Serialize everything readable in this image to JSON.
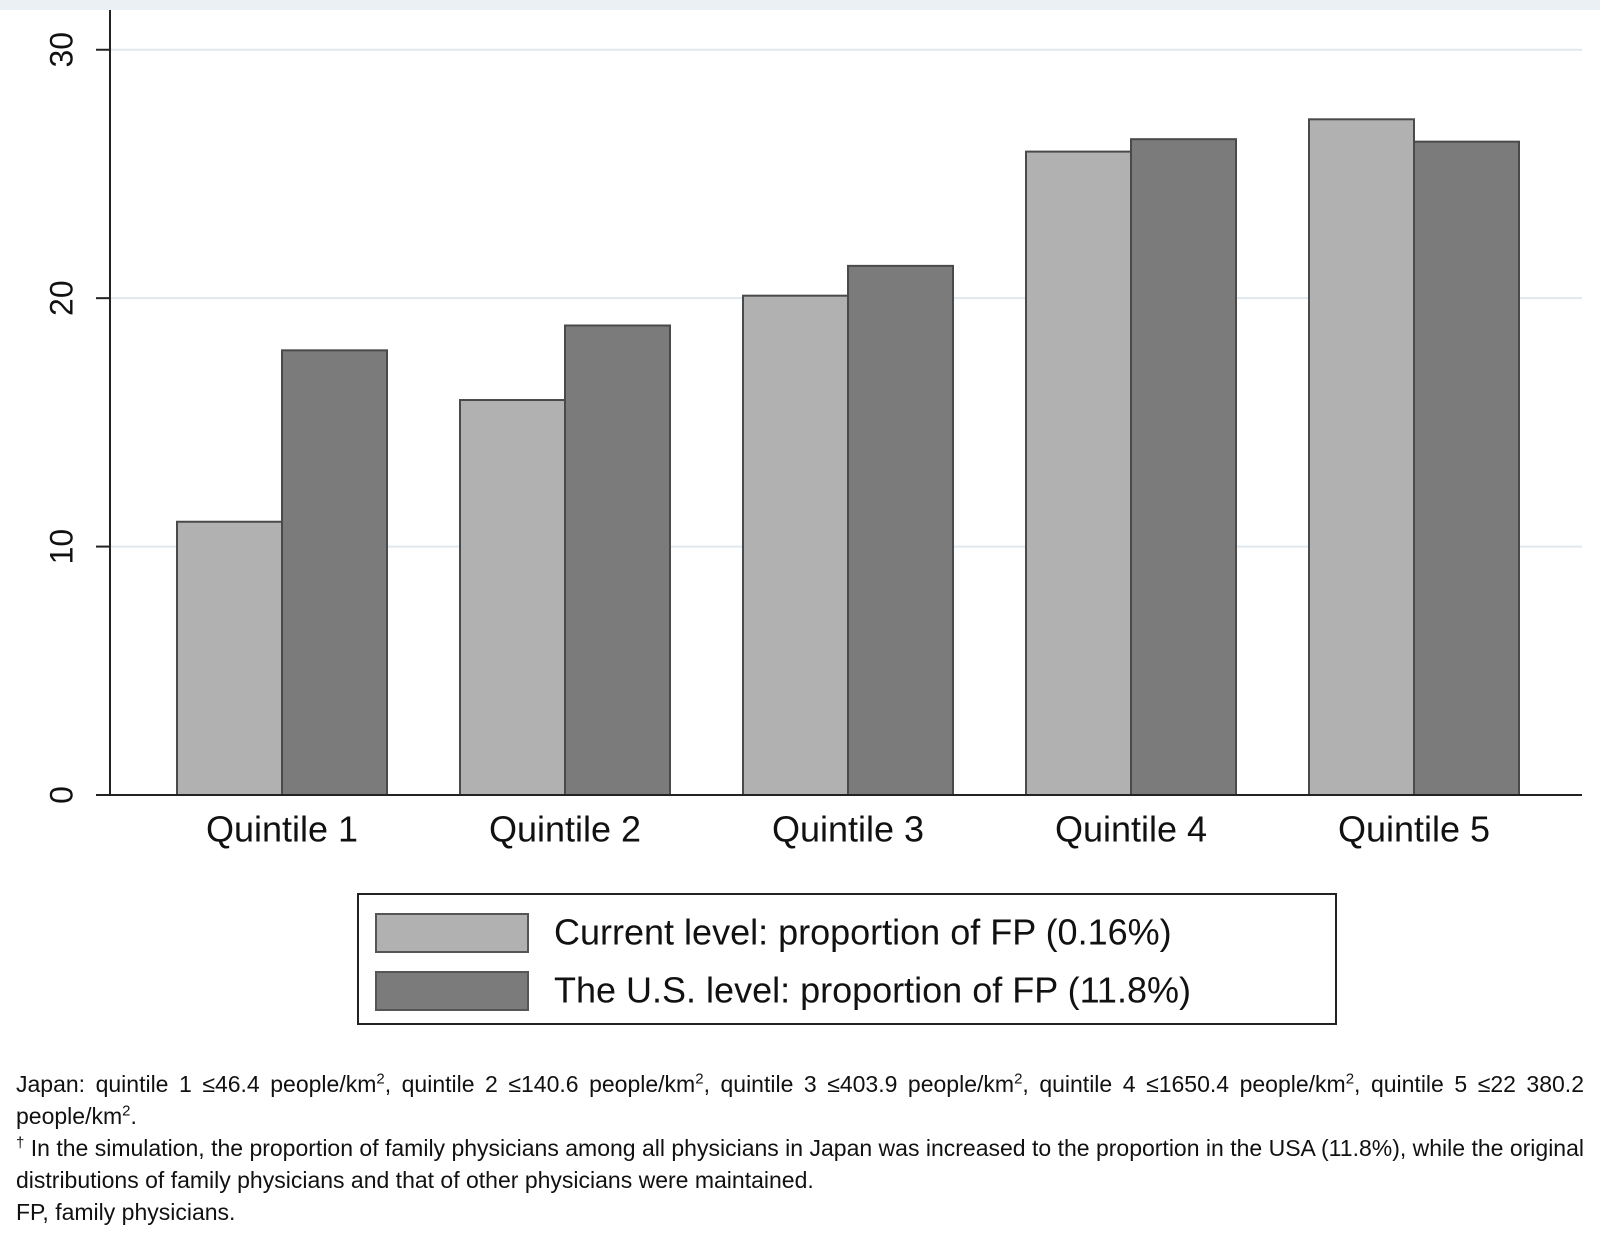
{
  "chart_data": {
    "type": "bar",
    "categories": [
      "Quintile 1",
      "Quintile 2",
      "Quintile 3",
      "Quintile 4",
      "Quintile 5"
    ],
    "series": [
      {
        "name": "Current level: proportion of FP (0.16%)",
        "color": "#b1b1b1",
        "values": [
          11.0,
          15.9,
          20.1,
          25.9,
          27.2
        ]
      },
      {
        "name": "The U.S. level: proportion of FP (11.8%)",
        "color": "#7b7b7b",
        "values": [
          17.9,
          18.9,
          21.3,
          26.4,
          26.3
        ]
      }
    ],
    "ylim": [
      0,
      31.6
    ],
    "yticks": [
      0,
      10,
      20,
      30
    ],
    "grid": true,
    "legend": "bottom"
  },
  "notes": [
    [
      {
        "text": "Japan: quintile 1 ≤46.4 people/km"
      },
      {
        "sup": "2"
      },
      {
        "text": ", quintile 2 ≤140.6 people/km"
      },
      {
        "sup": "2"
      },
      {
        "text": ", quintile 3 ≤403.9 people/km"
      },
      {
        "sup": "2"
      },
      {
        "text": ", quintile 4 ≤1650.4 people/km"
      },
      {
        "sup": "2"
      },
      {
        "text": ", quintile 5 ≤22 380.2 people/km"
      },
      {
        "sup": "2"
      },
      {
        "text": "."
      }
    ],
    [
      {
        "sup": "†"
      },
      {
        "text": " In the simulation, the proportion of family physicians among all physicians in Japan was increased to the proportion in the USA (11.8%), while the original distributions of family physicians and that of other physicians were maintained."
      }
    ],
    [
      {
        "text": "FP, family physicians."
      }
    ]
  ]
}
